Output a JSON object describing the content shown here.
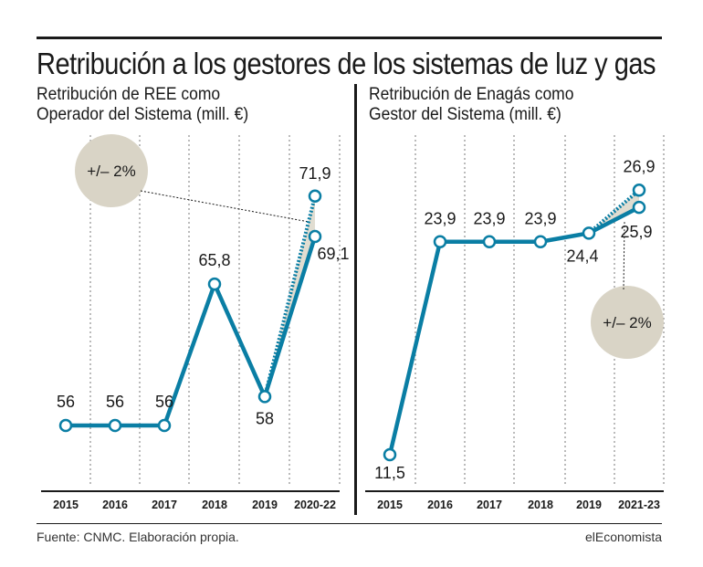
{
  "title": "Retribución a los gestores de los sistemas de luz y gas",
  "source": "Fuente: CNMC.  Elaboración propia.",
  "brand": "elEconomista",
  "colors": {
    "line": "#0a7ea4",
    "badge": "#d9d4c6",
    "text": "#1a1a1a",
    "marker_fill": "#ffffff"
  },
  "chart_data": [
    {
      "type": "line",
      "title": "Retribución de REE como Operador del Sistema (mill. €)",
      "title_lines": [
        "Retribución de REE como",
        "Operador del Sistema (mill. €)"
      ],
      "categories": [
        "2015",
        "2016",
        "2017",
        "2018",
        "2019",
        "2020-22"
      ],
      "series": [
        {
          "values": [
            56,
            56,
            56,
            65.8,
            58,
            69.1
          ],
          "labels": [
            "56",
            "56",
            "56",
            "65,8",
            "58",
            "69,1"
          ]
        }
      ],
      "upper_estimate": {
        "from_category": "2019",
        "to_category": "2020-22",
        "value": 71.9,
        "label": "71,9",
        "style": "dotted"
      },
      "band_label": "+/– 2%",
      "ylim": [
        51,
        76
      ],
      "grid": "vertical dotted",
      "legend": "none"
    },
    {
      "type": "line",
      "title": "Retribución de Enagás como Gestor del Sistema (mill. €)",
      "title_lines": [
        "Retribución de Enagás como",
        "Gestor del Sistema (mill. €)"
      ],
      "categories": [
        "2015",
        "2016",
        "2017",
        "2018",
        "2019",
        "2021-23"
      ],
      "series": [
        {
          "values": [
            11.5,
            23.9,
            23.9,
            23.9,
            24.4,
            25.9
          ],
          "labels": [
            "11,5",
            "23,9",
            "23,9",
            "23,9",
            "24,4",
            "25,9"
          ]
        }
      ],
      "upper_estimate": {
        "from_category": "2019",
        "to_category": "2021-23",
        "value": 26.9,
        "label": "26,9",
        "style": "dotted"
      },
      "band_label": "+/– 2%",
      "ylim": [
        9,
        30
      ],
      "grid": "vertical dotted",
      "legend": "none"
    }
  ]
}
